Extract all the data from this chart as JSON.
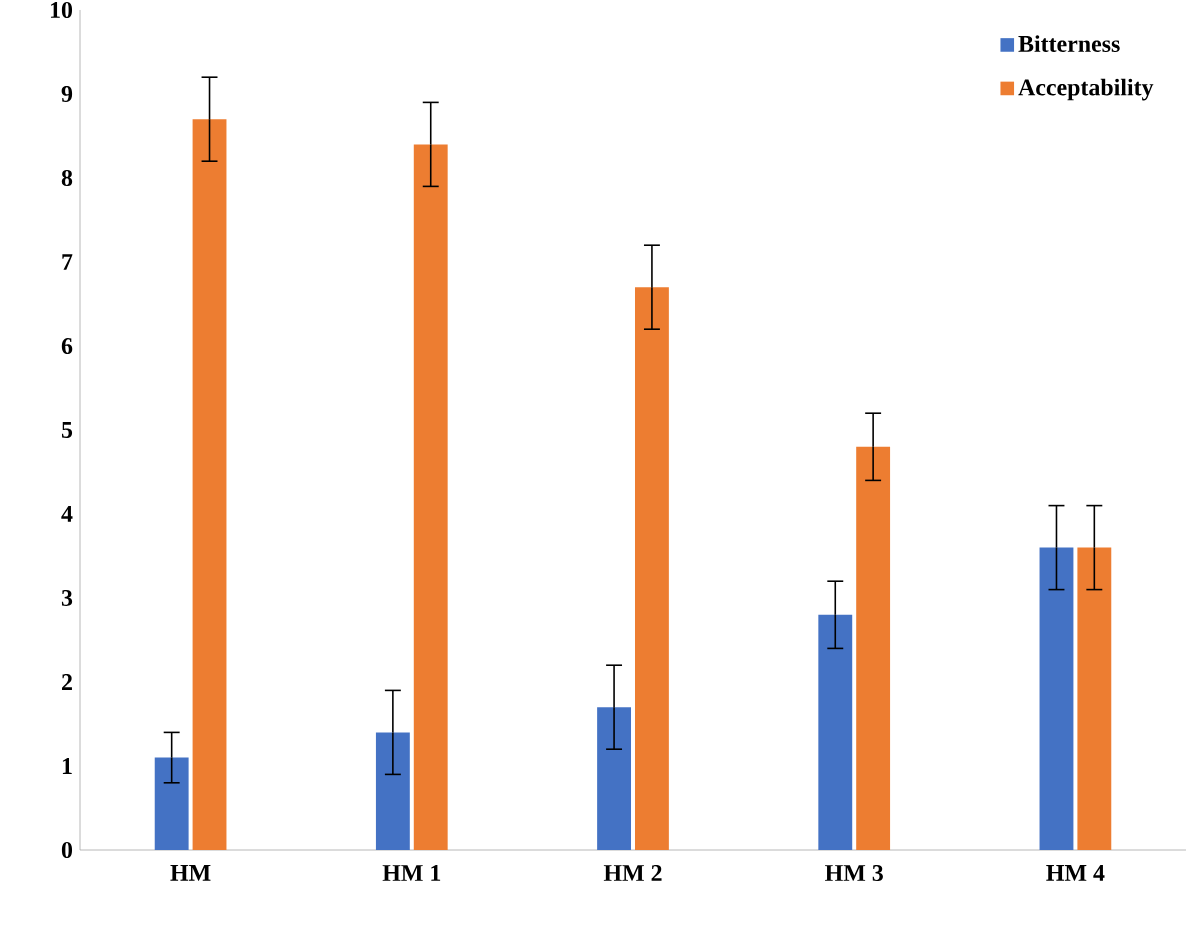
{
  "chart_data": {
    "type": "bar",
    "categories": [
      "HM",
      "HM 1",
      "HM 2",
      "HM 3",
      "HM 4"
    ],
    "series": [
      {
        "name": "Bitterness",
        "color": "#4472c4",
        "values": [
          1.1,
          1.4,
          1.7,
          2.8,
          3.6
        ],
        "errors": [
          0.3,
          0.5,
          0.5,
          0.4,
          0.5
        ]
      },
      {
        "name": "Acceptability",
        "color": "#ed7d31",
        "values": [
          8.7,
          8.4,
          6.7,
          4.8,
          3.6
        ],
        "errors": [
          0.5,
          0.5,
          0.5,
          0.4,
          0.5
        ]
      }
    ],
    "ylim": [
      0,
      10
    ],
    "yticks": [
      0,
      1,
      2,
      3,
      4,
      5,
      6,
      7,
      8,
      9,
      10
    ],
    "grid": false,
    "legend": "top right"
  }
}
